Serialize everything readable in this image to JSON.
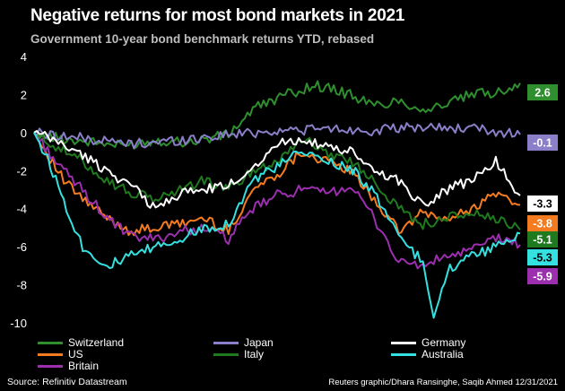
{
  "title": "Negative returns for most bond markets in 2021",
  "subtitle": "Government 10-year bond benchmark returns YTD, rebased",
  "footer": {
    "source": "Source: Refinitiv Datastream",
    "credit": "Reuters graphic/Dhara Ransinghe, Saqib Ahmed 12/31/2021"
  },
  "chart_data": {
    "type": "line",
    "ylim": [
      -10,
      4
    ],
    "yticks": [
      "4",
      "2",
      "0",
      "-2",
      "-4",
      "-6",
      "-8",
      "-10"
    ],
    "grid": false,
    "legend_position": "bottom",
    "series": [
      {
        "name": "Switzerland",
        "color": "#2f8f2f",
        "end_label": "2.6",
        "label_bg": "#2f8f2f",
        "x": [
          0,
          0.05,
          0.12,
          0.18,
          0.25,
          0.32,
          0.4,
          0.45,
          0.48,
          0.52,
          0.58,
          0.65,
          0.7,
          0.75,
          0.8,
          0.85,
          0.9,
          0.95,
          1.0
        ],
        "values": [
          0,
          -0.3,
          -0.5,
          -0.7,
          -0.4,
          -0.5,
          -0.1,
          1.2,
          1.6,
          2.0,
          2.5,
          2.0,
          1.4,
          1.7,
          1.2,
          1.5,
          2.0,
          2.1,
          2.6
        ]
      },
      {
        "name": "US",
        "color": "#f47b20",
        "end_label": "-3.8",
        "label_bg": "#f47b20",
        "x": [
          0,
          0.03,
          0.06,
          0.1,
          0.15,
          0.2,
          0.25,
          0.3,
          0.35,
          0.4,
          0.45,
          0.5,
          0.55,
          0.6,
          0.65,
          0.7,
          0.75,
          0.8,
          0.85,
          0.9,
          0.95,
          1.0
        ],
        "values": [
          0,
          -1.2,
          -2.5,
          -3.5,
          -4.5,
          -5.2,
          -5.0,
          -4.8,
          -4.5,
          -5.2,
          -3.0,
          -2.2,
          -1.0,
          -1.5,
          -2.0,
          -3.5,
          -5.2,
          -4.2,
          -4.6,
          -4.0,
          -3.2,
          -3.8
        ]
      },
      {
        "name": "Britain",
        "color": "#9b2fae",
        "end_label": "-5.9",
        "label_bg": "#9b2fae",
        "x": [
          0,
          0.03,
          0.06,
          0.1,
          0.15,
          0.2,
          0.25,
          0.3,
          0.35,
          0.4,
          0.45,
          0.5,
          0.55,
          0.6,
          0.65,
          0.7,
          0.75,
          0.8,
          0.85,
          0.9,
          0.95,
          1.0
        ],
        "values": [
          0,
          -1.0,
          -2.0,
          -3.0,
          -4.5,
          -5.5,
          -5.6,
          -5.2,
          -5.0,
          -5.6,
          -4.0,
          -3.3,
          -3.0,
          -3.2,
          -2.8,
          -4.5,
          -6.8,
          -7.0,
          -6.5,
          -6.2,
          -5.5,
          -5.9
        ]
      },
      {
        "name": "Japan",
        "color": "#8a7fc8",
        "end_label": "-0.1",
        "label_bg": "#8a7fc8",
        "x": [
          0,
          0.1,
          0.2,
          0.3,
          0.4,
          0.5,
          0.6,
          0.7,
          0.8,
          0.9,
          1.0
        ],
        "values": [
          0,
          -0.3,
          -0.6,
          -0.4,
          -0.1,
          0.1,
          0.2,
          0.1,
          0.3,
          0.2,
          -0.1
        ]
      },
      {
        "name": "Italy",
        "color": "#1f7a1f",
        "end_label": "-5.1",
        "label_bg": "#1f7a1f",
        "x": [
          0,
          0.05,
          0.1,
          0.15,
          0.2,
          0.25,
          0.3,
          0.35,
          0.4,
          0.45,
          0.5,
          0.55,
          0.6,
          0.65,
          0.7,
          0.75,
          0.8,
          0.85,
          0.9,
          0.95,
          1.0
        ],
        "values": [
          0,
          -0.8,
          -1.5,
          -2.5,
          -3.2,
          -3.5,
          -3.0,
          -2.5,
          -3.0,
          -2.0,
          -1.5,
          -0.3,
          -1.0,
          -1.5,
          -2.5,
          -4.0,
          -4.8,
          -4.5,
          -4.2,
          -4.6,
          -5.1
        ]
      },
      {
        "name": "Germany",
        "color": "#ffffff",
        "end_label": "-3.3",
        "label_bg": "#ffffff",
        "label_color": "#000000",
        "x": [
          0,
          0.05,
          0.1,
          0.15,
          0.2,
          0.25,
          0.3,
          0.35,
          0.4,
          0.45,
          0.5,
          0.55,
          0.6,
          0.65,
          0.7,
          0.75,
          0.8,
          0.85,
          0.9,
          0.95,
          1.0
        ],
        "values": [
          0,
          -0.5,
          -1.2,
          -2.0,
          -2.8,
          -4.0,
          -3.2,
          -3.0,
          -2.8,
          -1.8,
          -0.6,
          -0.3,
          -0.8,
          -1.0,
          -2.0,
          -2.5,
          -3.8,
          -3.0,
          -2.5,
          -1.5,
          -3.3
        ]
      },
      {
        "name": "Australia",
        "color": "#35e0e0",
        "end_label": "-5.3",
        "label_bg": "#35e0e0",
        "label_color": "#000000",
        "x": [
          0,
          0.03,
          0.06,
          0.1,
          0.15,
          0.2,
          0.25,
          0.3,
          0.35,
          0.4,
          0.45,
          0.5,
          0.55,
          0.6,
          0.65,
          0.7,
          0.75,
          0.8,
          0.82,
          0.85,
          0.9,
          0.95,
          1.0
        ],
        "values": [
          0,
          -1.5,
          -3.5,
          -6.0,
          -7.0,
          -6.5,
          -6.0,
          -5.6,
          -5.0,
          -4.8,
          -2.5,
          -1.8,
          -1.0,
          -1.5,
          -1.8,
          -3.2,
          -5.5,
          -6.8,
          -9.8,
          -7.2,
          -6.5,
          -6.0,
          -5.3
        ]
      }
    ]
  },
  "legend_rows": [
    [
      {
        "name": "Switzerland",
        "color": "#2f8f2f"
      },
      {
        "name": "Japan",
        "color": "#8a7fc8"
      },
      {
        "name": "Germany",
        "color": "#ffffff"
      }
    ],
    [
      {
        "name": "US",
        "color": "#f47b20"
      },
      {
        "name": "Italy",
        "color": "#1f7a1f"
      },
      {
        "name": "Australia",
        "color": "#35e0e0"
      }
    ],
    [
      {
        "name": "Britain",
        "color": "#9b2fae"
      }
    ]
  ]
}
